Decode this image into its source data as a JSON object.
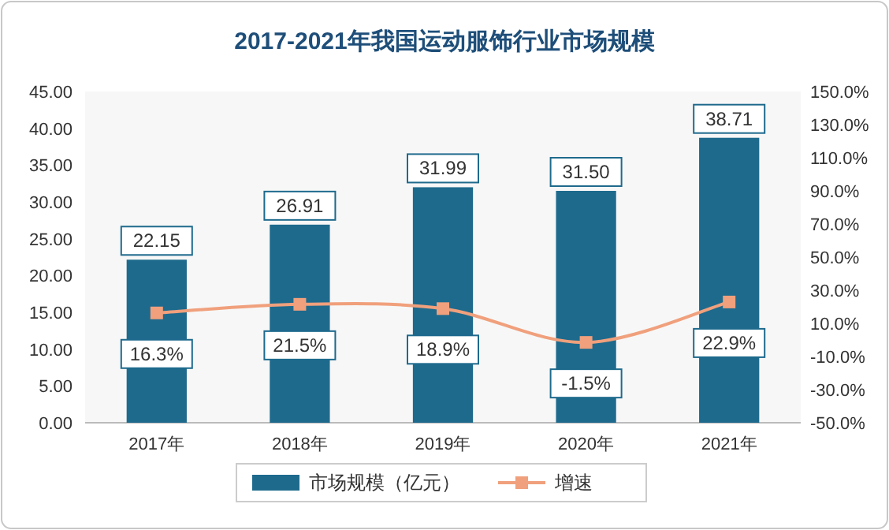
{
  "chart_data": {
    "type": "bar",
    "title": "2017-2021年我国运动服饰行业市场规模",
    "categories": [
      "2017年",
      "2018年",
      "2019年",
      "2020年",
      "2021年"
    ],
    "series": [
      {
        "name": "市场规模（亿元）",
        "color": "#1e6a8d",
        "values": [
          22.15,
          26.91,
          31.99,
          31.5,
          38.71
        ],
        "value_labels": [
          "22.15",
          "26.91",
          "31.99",
          "31.50",
          "38.71"
        ]
      },
      {
        "name": "增速",
        "type": "line",
        "axis": "y2",
        "color": "#f0a07c",
        "marker": "square",
        "values": [
          16.3,
          21.5,
          18.9,
          -1.5,
          22.9
        ],
        "value_labels": [
          "16.3%",
          "21.5%",
          "18.9%",
          "-1.5%",
          "22.9%"
        ]
      }
    ],
    "ylim": [
      0,
      45
    ],
    "yticks": [
      {
        "value": 0,
        "label": "0.00"
      },
      {
        "value": 5,
        "label": "5.00"
      },
      {
        "value": 10,
        "label": "10.00"
      },
      {
        "value": 15,
        "label": "15.00"
      },
      {
        "value": 20,
        "label": "20.00"
      },
      {
        "value": 25,
        "label": "25.00"
      },
      {
        "value": 30,
        "label": "30.00"
      },
      {
        "value": 35,
        "label": "35.00"
      },
      {
        "value": 40,
        "label": "40.00"
      },
      {
        "value": 45,
        "label": "45.00"
      }
    ],
    "y2lim": [
      -50,
      150
    ],
    "y2ticks": [
      {
        "value": -50,
        "label": "-50.0%"
      },
      {
        "value": -30,
        "label": "-30.0%"
      },
      {
        "value": -10,
        "label": "-10.0%"
      },
      {
        "value": 10,
        "label": "10.0%"
      },
      {
        "value": 30,
        "label": "30.0%"
      },
      {
        "value": 50,
        "label": "50.0%"
      },
      {
        "value": 70,
        "label": "70.0%"
      },
      {
        "value": 90,
        "label": "90.0%"
      },
      {
        "value": 110,
        "label": "110.0%"
      },
      {
        "value": 130,
        "label": "130.0%"
      },
      {
        "value": 150,
        "label": "150.0%"
      }
    ],
    "legend": "bottom"
  }
}
